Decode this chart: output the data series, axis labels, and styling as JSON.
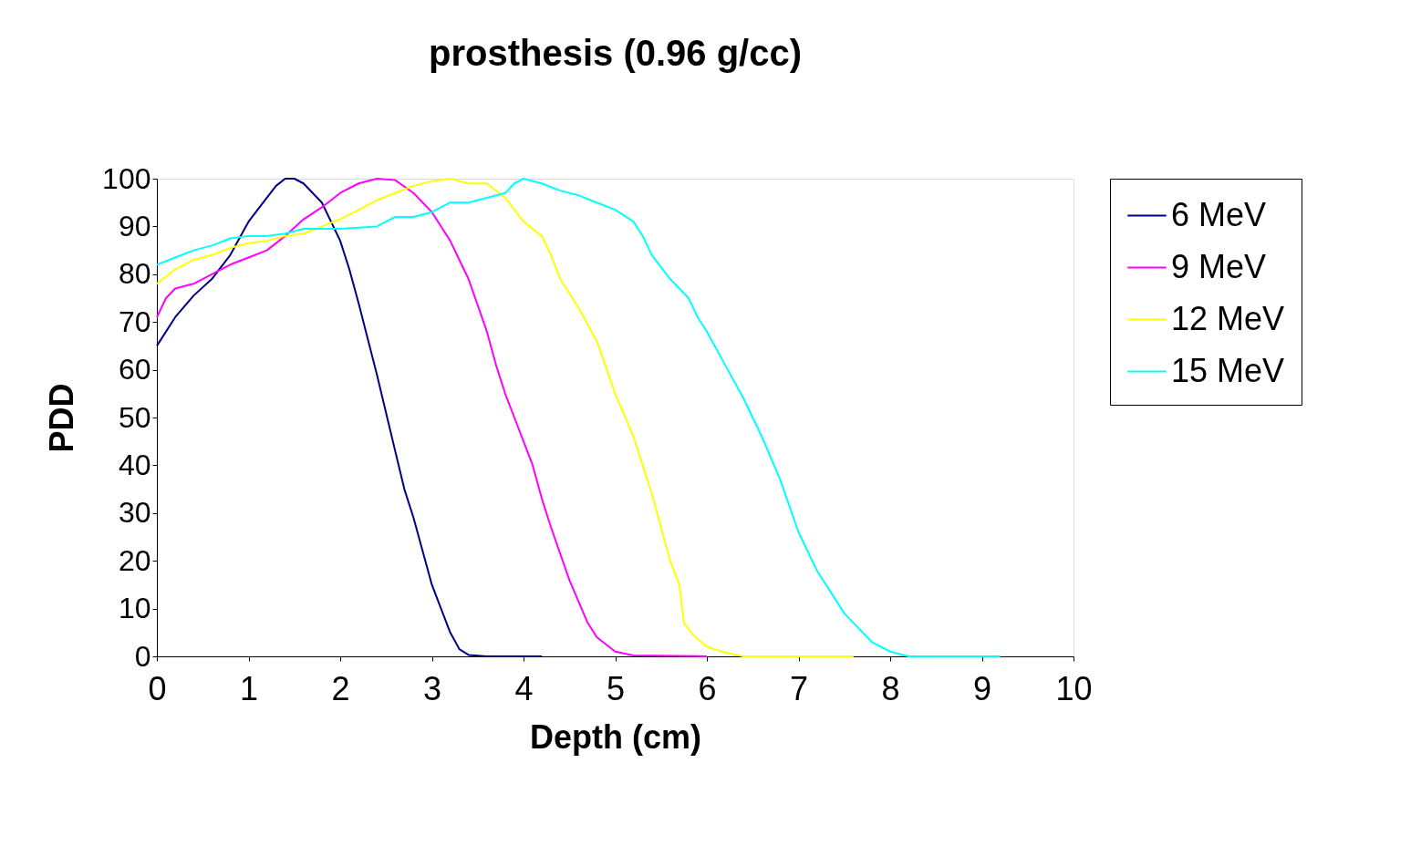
{
  "chart_data": {
    "type": "line",
    "title": "prosthesis (0.96 g/cc)",
    "xlabel": "Depth (cm)",
    "ylabel": "PDD",
    "xlim": [
      0,
      10
    ],
    "xticks": [
      0,
      1,
      2,
      3,
      4,
      5,
      6,
      7,
      8,
      9,
      10
    ],
    "ylim": [
      0,
      100
    ],
    "yticks": [
      0,
      10,
      20,
      30,
      40,
      50,
      60,
      70,
      80,
      90,
      100
    ],
    "grid": false,
    "legend": "right",
    "marker": "none",
    "line_style": "solid",
    "series": [
      {
        "name": "6 MeV",
        "color": "#000080",
        "x": [
          0,
          0.2,
          0.4,
          0.6,
          0.8,
          1.0,
          1.2,
          1.3,
          1.4,
          1.5,
          1.6,
          1.8,
          1.9,
          2.0,
          2.1,
          2.2,
          2.4,
          2.6,
          2.7,
          2.8,
          2.9,
          3.0,
          3.1,
          3.2,
          3.3,
          3.4,
          3.6,
          4.2
        ],
        "values": [
          65,
          71,
          75.5,
          79,
          84,
          91,
          96,
          98.5,
          100,
          100,
          99,
          95,
          91,
          87,
          81,
          74,
          59,
          43,
          35,
          29,
          22,
          15,
          10,
          5,
          1.5,
          0.3,
          0,
          0
        ]
      },
      {
        "name": "9 MeV",
        "color": "#ff00ff",
        "x": [
          0,
          0.1,
          0.2,
          0.4,
          0.6,
          0.8,
          1.0,
          1.2,
          1.4,
          1.6,
          1.8,
          2.0,
          2.2,
          2.4,
          2.6,
          2.8,
          3.0,
          3.2,
          3.4,
          3.6,
          3.7,
          3.8,
          3.9,
          4.0,
          4.1,
          4.2,
          4.3,
          4.5,
          4.7,
          4.8,
          5.0,
          5.2,
          6.0
        ],
        "values": [
          71,
          75,
          77,
          78,
          80,
          82,
          83.5,
          85,
          88,
          91.5,
          94,
          97,
          99,
          100,
          99.7,
          97,
          93,
          87,
          79,
          68,
          61,
          55,
          50,
          45,
          40,
          33,
          27,
          16,
          7,
          4,
          1,
          0.2,
          0
        ]
      },
      {
        "name": "12 MeV",
        "color": "#ffff00",
        "x": [
          0,
          0.2,
          0.4,
          0.6,
          0.8,
          1.0,
          1.2,
          1.4,
          1.6,
          1.8,
          2.0,
          2.2,
          2.4,
          2.6,
          2.8,
          3.0,
          3.2,
          3.4,
          3.6,
          3.8,
          4.0,
          4.2,
          4.3,
          4.4,
          4.6,
          4.8,
          5.0,
          5.2,
          5.4,
          5.6,
          5.7,
          5.75,
          5.85,
          6.0,
          6.2,
          6.4,
          7.6
        ],
        "values": [
          78,
          81,
          83,
          84,
          85.5,
          86.5,
          87,
          88,
          88.5,
          90,
          91.5,
          93.5,
          95.5,
          97,
          98.5,
          99.5,
          100,
          99,
          99,
          96,
          91,
          88,
          84,
          79,
          73,
          66,
          55,
          46,
          34,
          20,
          15,
          7,
          4.5,
          2,
          0.8,
          0,
          0
        ]
      },
      {
        "name": "15 MeV",
        "color": "#00ffff",
        "x": [
          0,
          0.2,
          0.4,
          0.6,
          0.8,
          1.0,
          1.2,
          1.4,
          1.6,
          1.8,
          2.0,
          2.4,
          2.6,
          2.8,
          3.0,
          3.2,
          3.4,
          3.6,
          3.8,
          3.9,
          4.0,
          4.2,
          4.4,
          4.6,
          4.8,
          5.0,
          5.2,
          5.3,
          5.4,
          5.6,
          5.8,
          5.9,
          6.0,
          6.2,
          6.4,
          6.6,
          6.8,
          7.0,
          7.2,
          7.4,
          7.5,
          7.6,
          7.8,
          8.0,
          8.2,
          9.2
        ],
        "values": [
          82,
          83.5,
          85,
          86,
          87.5,
          88,
          88,
          88.5,
          89.5,
          89.5,
          89.5,
          90,
          92,
          92,
          93,
          95,
          95,
          96,
          97,
          99,
          100,
          99,
          97.5,
          96.5,
          95,
          93.5,
          91,
          88,
          84,
          79,
          75,
          71,
          68,
          61,
          54,
          46,
          37,
          26,
          18,
          12,
          9,
          7,
          3,
          1,
          0,
          0
        ]
      }
    ]
  }
}
